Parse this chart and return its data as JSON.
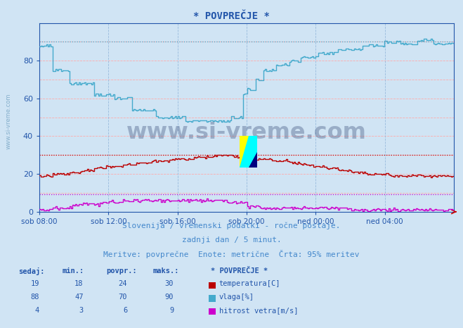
{
  "title": "* POVPREČJE *",
  "bg_color": "#d0e4f4",
  "plot_bg_color": "#d0e4f4",
  "grid_color_h": "#ffaaaa",
  "grid_color_v": "#99bbdd",
  "xlabel_ticks": [
    "sob 08:00",
    "sob 12:00",
    "sob 16:00",
    "sob 20:00",
    "ned 00:00",
    "ned 04:00"
  ],
  "ymin": 0,
  "ymax": 100,
  "subtitle1": "Slovenija / vremenski podatki - ročne postaje.",
  "subtitle2": "zadnji dan / 5 minut.",
  "subtitle3": "Meritve: povprečne  Enote: metrične  Črta: 95% meritev",
  "subtitle_color": "#4488cc",
  "watermark": "www.si-vreme.com",
  "watermark_color": "#1a3060",
  "legend_title": "* POVPREČJE *",
  "table_headers": [
    "sedaj:",
    "min.:",
    "povpr.:",
    "maks.:"
  ],
  "table_rows": [
    [
      19,
      18,
      24,
      30
    ],
    [
      88,
      47,
      70,
      90
    ],
    [
      4,
      3,
      6,
      9
    ]
  ],
  "temp_color": "#bb0000",
  "humidity_color": "#44aacc",
  "wind_color": "#cc00cc",
  "temp_max_line": 30,
  "humidity_max_line": 90,
  "wind_max_line": 9,
  "axis_color": "#2255aa",
  "tick_color": "#2255aa",
  "legend_color": "#2255aa",
  "n_points": 288
}
